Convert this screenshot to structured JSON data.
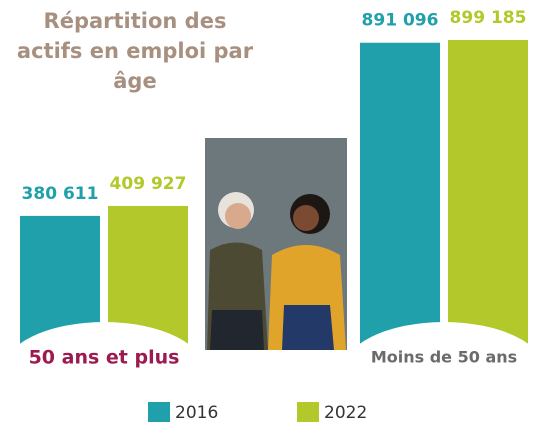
{
  "chart_data": {
    "type": "bar",
    "title": "Répartition des actifs en emploi par âge",
    "categories": [
      "50 ans et plus",
      "Moins de 50 ans"
    ],
    "category_colors": [
      "#9b1a4f",
      "#6b6b6b"
    ],
    "series": [
      {
        "name": "2016",
        "color": "#1fa0aa",
        "values": [
          380611,
          891096
        ],
        "value_labels": [
          "380 611",
          "891 096"
        ]
      },
      {
        "name": "2022",
        "color": "#b3c82a",
        "values": [
          409927,
          899185
        ],
        "value_labels": [
          "409 927",
          "899 185"
        ]
      }
    ]
  }
}
